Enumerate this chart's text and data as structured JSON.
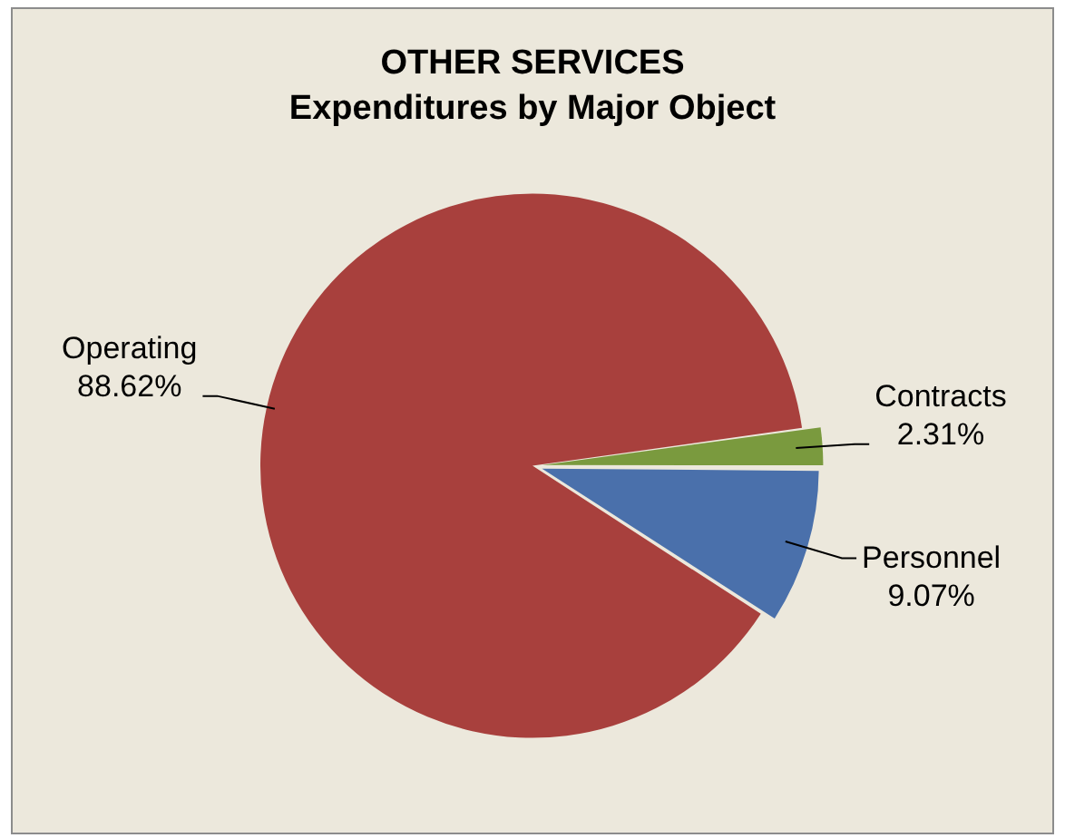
{
  "chart_data": {
    "type": "pie",
    "title": "OTHER SERVICES",
    "subtitle": "Expenditures by Major Object",
    "categories": [
      "Contracts",
      "Personnel",
      "Operating"
    ],
    "values": [
      2.31,
      9.07,
      88.62
    ],
    "colors": [
      "#7a9a3e",
      "#4a70ab",
      "#a8403d"
    ],
    "value_labels": [
      "2.31%",
      "9.07%",
      "88.62%"
    ],
    "legend": false
  }
}
